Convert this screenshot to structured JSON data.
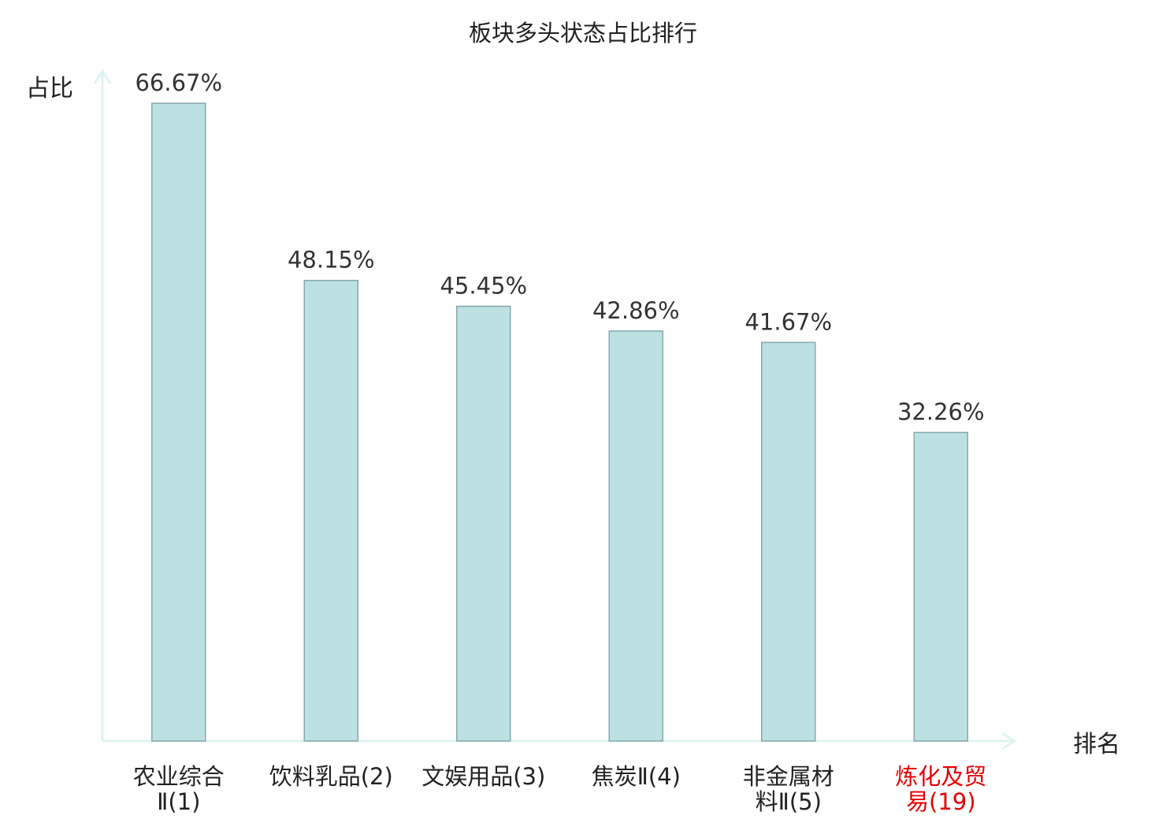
{
  "chart_data": {
    "type": "bar",
    "title": "板块多头状态占比排行",
    "ylabel": "占比",
    "xlabel": "排名",
    "categories": [
      {
        "lines": [
          "农业综合",
          "Ⅱ(1)"
        ],
        "highlight": false
      },
      {
        "lines": [
          "饮料乳品(2)"
        ],
        "highlight": false
      },
      {
        "lines": [
          "文娱用品(3)"
        ],
        "highlight": false
      },
      {
        "lines": [
          "焦炭Ⅱ(4)"
        ],
        "highlight": false
      },
      {
        "lines": [
          "非金属材",
          "料Ⅱ(5)"
        ],
        "highlight": false
      },
      {
        "lines": [
          "炼化及贸",
          "易(19)"
        ],
        "highlight": true
      }
    ],
    "values": [
      66.67,
      48.15,
      45.45,
      42.86,
      41.67,
      32.26
    ],
    "value_labels": [
      "66.67%",
      "48.15%",
      "45.45%",
      "42.86%",
      "41.67%",
      "32.26%"
    ],
    "ylim": [
      0,
      68.5
    ],
    "grid": false,
    "legend": "none",
    "colors": {
      "bar_fill": "#bde0e3",
      "bar_stroke": "#86a9ab",
      "axis": "#e0f3f1",
      "text": "#333333",
      "label": "#222222",
      "highlight": "#e60000"
    }
  }
}
